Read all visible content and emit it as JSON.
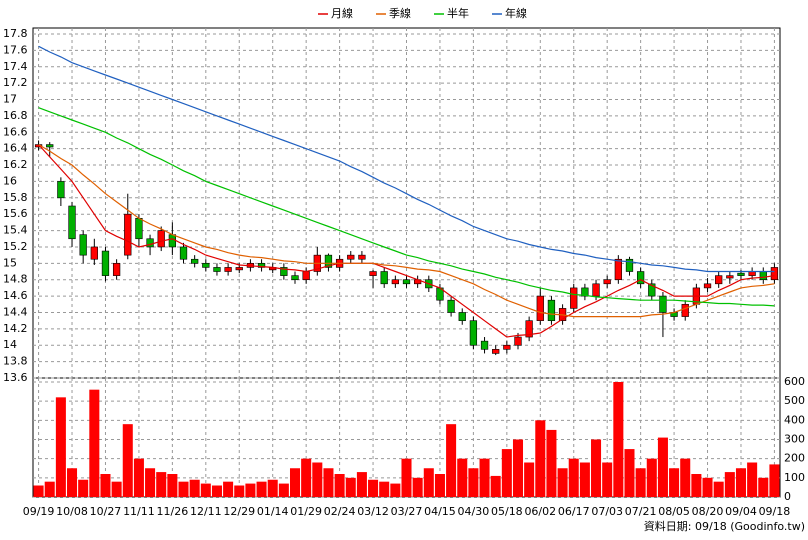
{
  "chart_data": {
    "type": "candlestick",
    "categories": [
      "09/19",
      null,
      null,
      "10/08",
      null,
      null,
      "10/27",
      null,
      null,
      "11/11",
      null,
      null,
      "11/26",
      null,
      null,
      "12/11",
      null,
      null,
      "12/29",
      null,
      null,
      "01/14",
      null,
      null,
      "01/29",
      null,
      null,
      "02/24",
      null,
      null,
      "03/12",
      null,
      null,
      "03/27",
      null,
      null,
      "04/15",
      null,
      null,
      "04/30",
      null,
      null,
      "05/18",
      null,
      null,
      "06/02",
      null,
      null,
      "06/17",
      null,
      null,
      "07/03",
      null,
      null,
      "07/21",
      null,
      null,
      "08/05",
      null,
      null,
      "08/20",
      null,
      null,
      "09/04",
      null,
      null,
      "09/18"
    ],
    "open": [
      16.42,
      16.45,
      16.0,
      15.7,
      15.35,
      15.05,
      15.15,
      14.85,
      15.1,
      15.55,
      15.3,
      15.2,
      15.35,
      15.2,
      15.05,
      15.0,
      14.95,
      14.9,
      14.92,
      14.95,
      15.0,
      14.92,
      14.95,
      14.85,
      14.8,
      14.9,
      15.1,
      14.95,
      15.05,
      15.05,
      14.85,
      14.9,
      14.75,
      14.8,
      14.75,
      14.8,
      14.7,
      14.55,
      14.4,
      14.3,
      14.05,
      13.9,
      13.95,
      14.0,
      14.1,
      14.3,
      14.55,
      14.3,
      14.45,
      14.7,
      14.6,
      14.75,
      14.8,
      15.05,
      14.9,
      14.75,
      14.6,
      14.4,
      14.35,
      14.5,
      14.7,
      14.75,
      14.82,
      14.88,
      14.85,
      14.9,
      14.8
    ],
    "high": [
      16.5,
      16.48,
      16.05,
      15.75,
      15.4,
      15.3,
      15.2,
      15.05,
      15.85,
      15.6,
      15.35,
      15.45,
      15.5,
      15.25,
      15.1,
      15.05,
      15.0,
      15.0,
      15.0,
      15.05,
      15.05,
      15.0,
      15.0,
      14.9,
      14.95,
      15.2,
      15.12,
      15.1,
      15.15,
      15.15,
      14.92,
      14.95,
      14.85,
      14.85,
      14.85,
      14.85,
      14.75,
      14.6,
      14.45,
      14.35,
      14.1,
      14.0,
      14.05,
      14.15,
      14.35,
      14.7,
      14.6,
      14.5,
      14.75,
      14.75,
      14.8,
      14.85,
      15.1,
      15.08,
      14.95,
      14.8,
      14.65,
      14.45,
      14.55,
      14.75,
      14.82,
      14.9,
      14.9,
      14.92,
      14.95,
      14.95,
      15.0
    ],
    "low": [
      16.38,
      16.3,
      15.7,
      15.2,
      15.0,
      14.98,
      14.78,
      14.8,
      15.05,
      15.2,
      15.1,
      15.15,
      15.1,
      15.0,
      14.95,
      14.9,
      14.85,
      14.85,
      14.88,
      14.9,
      14.9,
      14.88,
      14.8,
      14.75,
      14.75,
      14.85,
      14.9,
      14.9,
      15.0,
      15.0,
      14.7,
      14.7,
      14.7,
      14.7,
      14.7,
      14.65,
      14.5,
      14.35,
      14.25,
      13.95,
      13.9,
      13.88,
      13.9,
      13.95,
      14.05,
      14.25,
      14.25,
      14.25,
      14.4,
      14.55,
      14.55,
      14.7,
      14.75,
      14.85,
      14.7,
      14.55,
      14.1,
      14.3,
      14.3,
      14.45,
      14.65,
      14.7,
      14.75,
      14.8,
      14.8,
      14.75,
      14.75
    ],
    "close": [
      16.45,
      16.42,
      15.8,
      15.3,
      15.1,
      15.2,
      14.85,
      15.0,
      15.6,
      15.3,
      15.2,
      15.4,
      15.2,
      15.05,
      15.0,
      14.95,
      14.9,
      14.95,
      14.95,
      15.0,
      14.95,
      14.95,
      14.85,
      14.8,
      14.9,
      15.1,
      14.95,
      15.05,
      15.1,
      15.1,
      14.9,
      14.75,
      14.8,
      14.75,
      14.8,
      14.7,
      14.55,
      14.4,
      14.3,
      14.0,
      13.95,
      13.95,
      14.0,
      14.1,
      14.3,
      14.6,
      14.3,
      14.45,
      14.7,
      14.6,
      14.75,
      14.8,
      15.05,
      14.9,
      14.75,
      14.6,
      14.4,
      14.35,
      14.5,
      14.7,
      14.75,
      14.85,
      14.85,
      14.85,
      14.9,
      14.8,
      14.95
    ],
    "up_color": "#ff0000",
    "down_color": "#00b000",
    "ylim": [
      13.6,
      17.8
    ],
    "yticks": [
      13.6,
      13.8,
      14,
      14.2,
      14.4,
      14.6,
      14.8,
      15,
      15.2,
      15.4,
      15.6,
      15.8,
      16,
      16.2,
      16.4,
      16.6,
      16.8,
      17,
      17.2,
      17.4,
      17.6,
      17.8
    ],
    "grid": true,
    "series": [
      {
        "name": "月線",
        "color": "#e00000",
        "values": [
          16.45,
          16.3,
          16.15,
          16.0,
          15.8,
          15.6,
          15.4,
          15.33,
          15.27,
          15.2,
          15.23,
          15.27,
          15.3,
          15.23,
          15.17,
          15.1,
          15.06,
          15.02,
          14.98,
          14.97,
          14.96,
          14.95,
          14.93,
          14.92,
          14.9,
          14.93,
          14.97,
          15.0,
          15.0,
          15.0,
          15.0,
          14.95,
          14.9,
          14.85,
          14.8,
          14.75,
          14.7,
          14.6,
          14.5,
          14.4,
          14.3,
          14.2,
          14.1,
          14.12,
          14.13,
          14.15,
          14.23,
          14.32,
          14.4,
          14.47,
          14.53,
          14.6,
          14.67,
          14.73,
          14.8,
          14.73,
          14.67,
          14.6,
          14.6,
          14.6,
          14.6,
          14.67,
          14.73,
          14.8,
          14.82,
          14.83,
          14.85
        ]
      },
      {
        "name": "季線",
        "color": "#e06000",
        "values": [
          16.45,
          16.37,
          16.28,
          16.2,
          16.08,
          15.97,
          15.85,
          15.75,
          15.65,
          15.55,
          15.48,
          15.42,
          15.35,
          15.3,
          15.25,
          15.2,
          15.17,
          15.13,
          15.1,
          15.08,
          15.07,
          15.05,
          15.03,
          15.02,
          15.0,
          15.0,
          15.0,
          15.0,
          15.0,
          15.0,
          15.0,
          14.98,
          14.97,
          14.95,
          14.93,
          14.92,
          14.9,
          14.85,
          14.8,
          14.75,
          14.68,
          14.62,
          14.55,
          14.5,
          14.45,
          14.4,
          14.38,
          14.37,
          14.35,
          14.35,
          14.35,
          14.35,
          14.35,
          14.35,
          14.35,
          14.37,
          14.38,
          14.4,
          14.45,
          14.5,
          14.55,
          14.6,
          14.65,
          14.7,
          14.72,
          14.73,
          14.75
        ]
      },
      {
        "name": "半年",
        "color": "#00c000",
        "values": [
          16.9,
          16.85,
          16.8,
          16.75,
          16.7,
          16.65,
          16.6,
          16.53,
          16.47,
          16.4,
          16.33,
          16.27,
          16.2,
          16.13,
          16.07,
          16.0,
          15.95,
          15.9,
          15.85,
          15.8,
          15.75,
          15.7,
          15.65,
          15.6,
          15.55,
          15.5,
          15.45,
          15.4,
          15.35,
          15.3,
          15.25,
          15.2,
          15.15,
          15.1,
          15.07,
          15.03,
          15.0,
          14.97,
          14.93,
          14.9,
          14.87,
          14.83,
          14.8,
          14.77,
          14.73,
          14.7,
          14.67,
          14.65,
          14.62,
          14.61,
          14.59,
          14.58,
          14.57,
          14.56,
          14.55,
          14.55,
          14.55,
          14.55,
          14.54,
          14.53,
          14.52,
          14.51,
          14.51,
          14.5,
          14.49,
          14.49,
          14.48
        ]
      },
      {
        "name": "年線",
        "color": "#2060c0",
        "values": [
          17.65,
          17.58,
          17.52,
          17.45,
          17.4,
          17.35,
          17.3,
          17.25,
          17.2,
          17.15,
          17.1,
          17.05,
          17.0,
          16.95,
          16.9,
          16.85,
          16.8,
          16.75,
          16.7,
          16.65,
          16.6,
          16.55,
          16.5,
          16.45,
          16.4,
          16.35,
          16.3,
          16.25,
          16.18,
          16.12,
          16.05,
          15.98,
          15.92,
          15.85,
          15.78,
          15.72,
          15.65,
          15.58,
          15.52,
          15.45,
          15.4,
          15.35,
          15.3,
          15.27,
          15.23,
          15.2,
          15.17,
          15.15,
          15.12,
          15.1,
          15.07,
          15.05,
          15.03,
          15.02,
          15.0,
          14.98,
          14.97,
          14.95,
          14.93,
          14.92,
          14.9,
          14.9,
          14.9,
          14.9,
          14.9,
          14.9,
          14.9
        ]
      }
    ],
    "volume": {
      "color": "#ff0000",
      "ylim": [
        0,
        600
      ],
      "yticks": [
        0,
        100,
        200,
        300,
        400,
        500,
        600
      ],
      "values": [
        60,
        80,
        520,
        150,
        90,
        560,
        120,
        80,
        380,
        200,
        150,
        130,
        120,
        80,
        90,
        70,
        60,
        80,
        60,
        70,
        80,
        90,
        70,
        150,
        200,
        180,
        150,
        120,
        100,
        130,
        90,
        80,
        70,
        200,
        100,
        150,
        120,
        380,
        200,
        150,
        200,
        110,
        250,
        300,
        180,
        400,
        350,
        150,
        200,
        180,
        300,
        180,
        600,
        250,
        150,
        200,
        310,
        150,
        200,
        120,
        100,
        80,
        130,
        150,
        180,
        100,
        170
      ]
    },
    "note": "資料日期: 09/18 (Goodinfo.tw)"
  }
}
